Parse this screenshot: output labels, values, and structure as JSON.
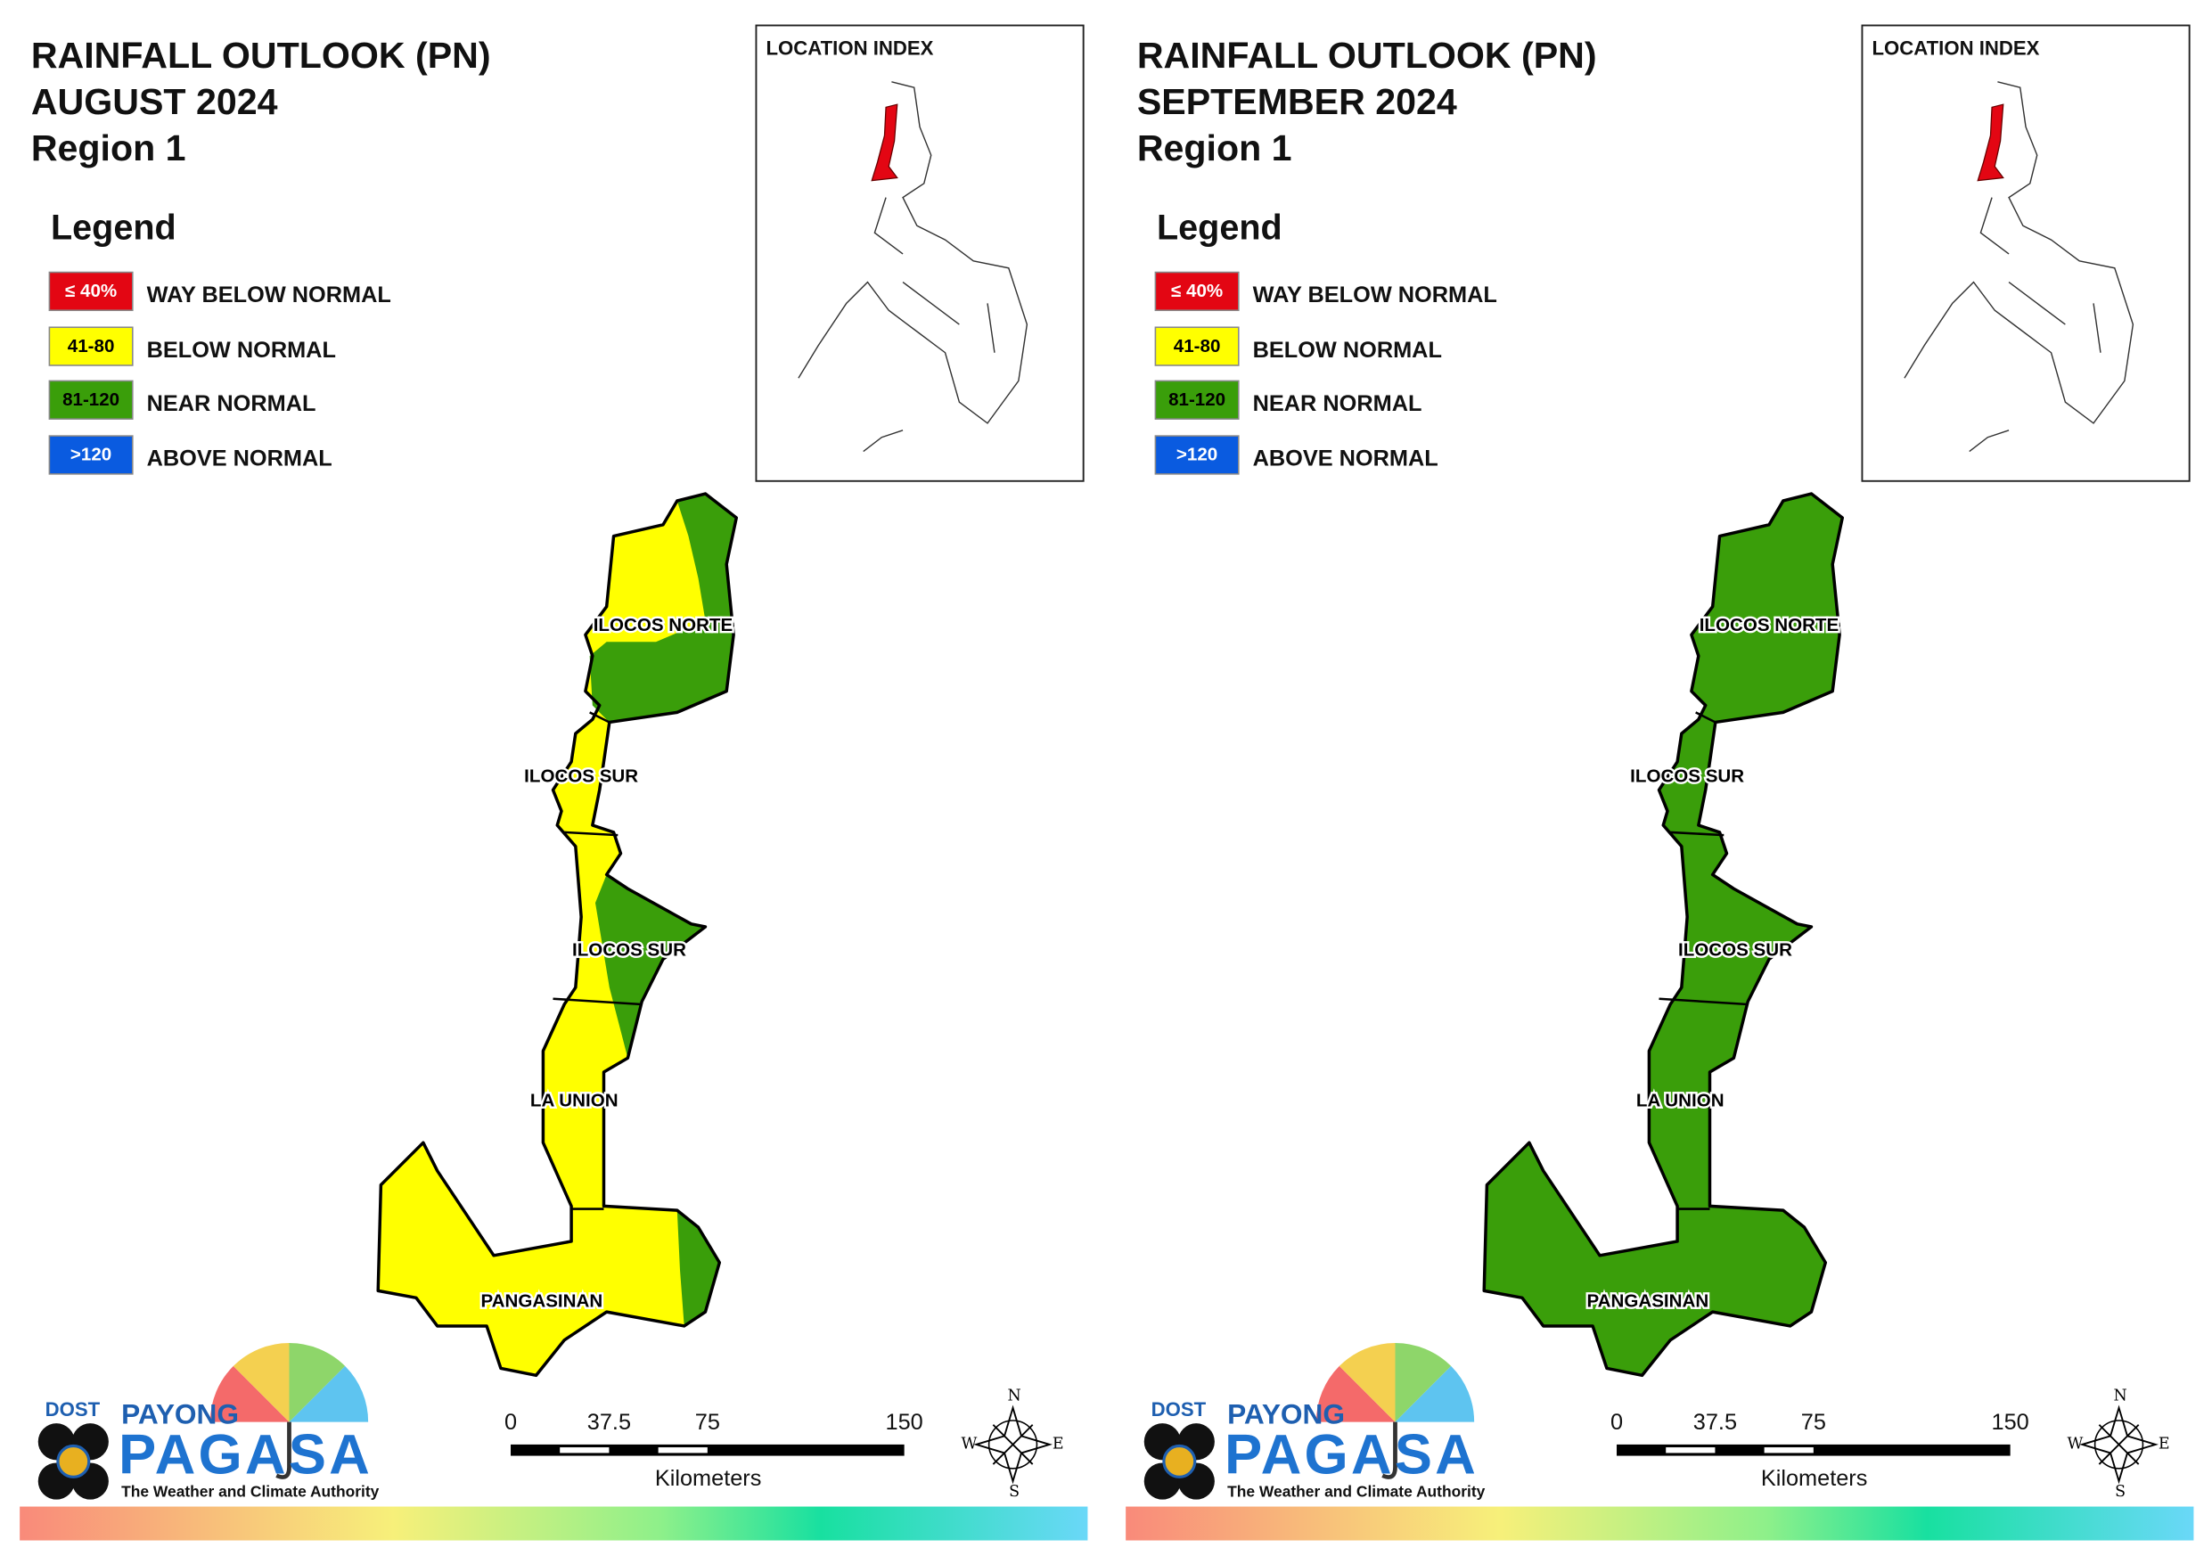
{
  "panels": [
    {
      "title": [
        "RAINFALL OUTLOOK (PN)",
        "AUGUST 2024",
        "Region 1"
      ],
      "legend_title": "Legend",
      "legend": [
        {
          "label": "≤ 40%",
          "text": "WAY BELOW NORMAL",
          "color": "#e30613"
        },
        {
          "label": "41-80",
          "text": "BELOW NORMAL",
          "color": "#ffff00"
        },
        {
          "label": "81-120",
          "text": "NEAR NORMAL",
          "color": "#3a9e0a"
        },
        {
          "label": ">120",
          "text": "ABOVE NORMAL",
          "color": "#0a5be0"
        }
      ],
      "location_index": "LOCATION INDEX",
      "provinces": [
        "ILOCOS NORTE",
        "ILOCOS SUR",
        "ILOCOS SUR",
        "LA UNION",
        "PANGASINAN"
      ],
      "scale": {
        "ticks": [
          0,
          37.5,
          75,
          150
        ],
        "unit": "Kilometers"
      },
      "compass": [
        "N",
        "E",
        "S",
        "W"
      ],
      "logo": {
        "agency": "DOST",
        "brand": "PAYONG",
        "name": "PAGASA",
        "tagline": "The Weather and Climate Authority"
      }
    },
    {
      "title": [
        "RAINFALL OUTLOOK (PN)",
        "SEPTEMBER 2024",
        "Region 1"
      ],
      "legend_title": "Legend",
      "legend": [
        {
          "label": "≤ 40%",
          "text": "WAY BELOW NORMAL",
          "color": "#e30613"
        },
        {
          "label": "41-80",
          "text": "BELOW NORMAL",
          "color": "#ffff00"
        },
        {
          "label": "81-120",
          "text": "NEAR NORMAL",
          "color": "#3a9e0a"
        },
        {
          "label": ">120",
          "text": "ABOVE NORMAL",
          "color": "#0a5be0"
        }
      ],
      "location_index": "LOCATION INDEX",
      "provinces": [
        "ILOCOS NORTE",
        "ILOCOS SUR",
        "ILOCOS SUR",
        "LA UNION",
        "PANGASINAN"
      ],
      "scale": {
        "ticks": [
          0,
          37.5,
          75,
          150
        ],
        "unit": "Kilometers"
      },
      "compass": [
        "N",
        "E",
        "S",
        "W"
      ],
      "logo": {
        "agency": "DOST",
        "brand": "PAYONG",
        "name": "PAGASA",
        "tagline": "The Weather and Climate Authority"
      }
    }
  ]
}
